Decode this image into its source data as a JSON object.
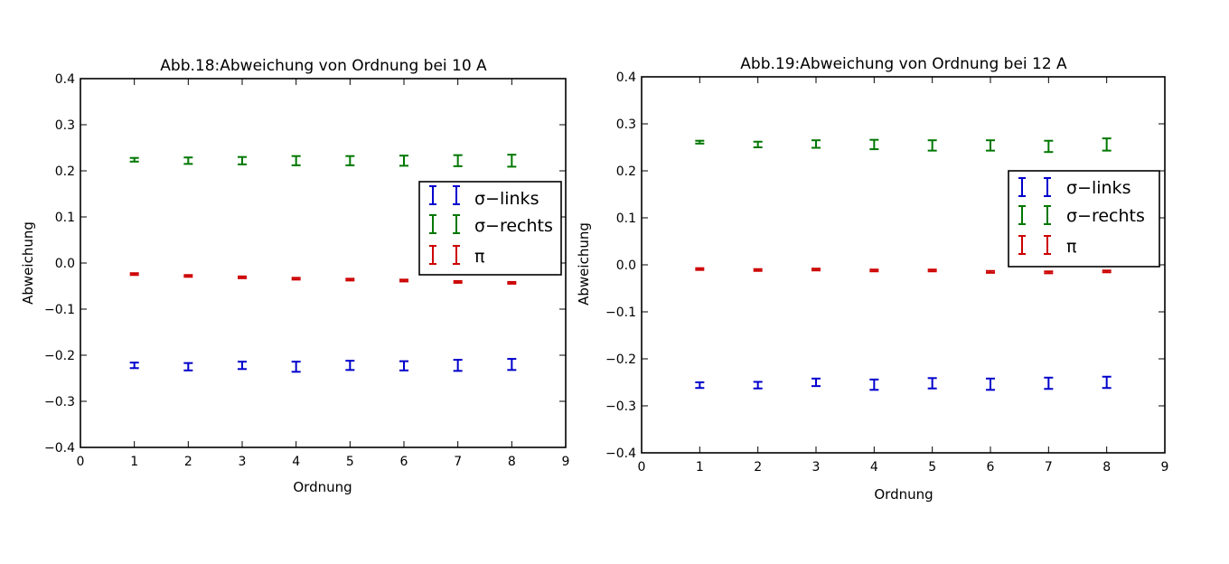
{
  "chart_data": [
    {
      "type": "scatter",
      "title": "Abb.18:Abweichung von Ordnung bei 10 A",
      "xlabel": "Ordnung",
      "ylabel": "Abweichung",
      "xlim": [
        0,
        9
      ],
      "ylim": [
        -0.4,
        0.4
      ],
      "xticks": [
        0,
        1,
        2,
        3,
        4,
        5,
        6,
        7,
        8,
        9
      ],
      "yticks": [
        -0.4,
        -0.3,
        -0.2,
        -0.1,
        0.0,
        0.1,
        0.2,
        0.3,
        0.4
      ],
      "grid": false,
      "legend_position": "right",
      "series": [
        {
          "name": "σ−links",
          "color": "#0000cc",
          "x": [
            1,
            2,
            3,
            4,
            5,
            6,
            7,
            8
          ],
          "y": [
            -0.222,
            -0.225,
            -0.222,
            -0.225,
            -0.222,
            -0.223,
            -0.222,
            -0.22
          ],
          "yerr": [
            0.006,
            0.008,
            0.008,
            0.011,
            0.01,
            0.01,
            0.012,
            0.012
          ]
        },
        {
          "name": "σ−rechts",
          "color": "#007700",
          "x": [
            1,
            2,
            3,
            4,
            5,
            6,
            7,
            8
          ],
          "y": [
            0.224,
            0.222,
            0.222,
            0.222,
            0.222,
            0.222,
            0.222,
            0.222
          ],
          "yerr": [
            0.004,
            0.007,
            0.008,
            0.01,
            0.01,
            0.011,
            0.012,
            0.013
          ]
        },
        {
          "name": "π",
          "color": "#cc0000",
          "x": [
            1,
            2,
            3,
            4,
            5,
            6,
            7,
            8
          ],
          "y": [
            -0.024,
            -0.028,
            -0.031,
            -0.034,
            -0.036,
            -0.038,
            -0.041,
            -0.043
          ],
          "yerr": [
            0.001,
            0.001,
            0.001,
            0.001,
            0.001,
            0.002,
            0.001,
            0.001
          ]
        }
      ]
    },
    {
      "type": "scatter",
      "title": "Abb.19:Abweichung von Ordnung bei 12 A",
      "xlabel": "Ordnung",
      "ylabel": "Abweichung",
      "xlim": [
        0,
        9
      ],
      "ylim": [
        -0.4,
        0.4
      ],
      "xticks": [
        0,
        1,
        2,
        3,
        4,
        5,
        6,
        7,
        8,
        9
      ],
      "yticks": [
        -0.4,
        -0.3,
        -0.2,
        -0.1,
        0.0,
        0.1,
        0.2,
        0.3,
        0.4
      ],
      "grid": false,
      "legend_position": "right",
      "series": [
        {
          "name": "σ−links",
          "color": "#0000cc",
          "x": [
            1,
            2,
            3,
            4,
            5,
            6,
            7,
            8
          ],
          "y": [
            -0.256,
            -0.256,
            -0.25,
            -0.255,
            -0.252,
            -0.254,
            -0.252,
            -0.25
          ],
          "yerr": [
            0.006,
            0.007,
            0.008,
            0.011,
            0.011,
            0.012,
            0.012,
            0.012
          ]
        },
        {
          "name": "σ−rechts",
          "color": "#007700",
          "x": [
            1,
            2,
            3,
            4,
            5,
            6,
            7,
            8
          ],
          "y": [
            0.261,
            0.256,
            0.257,
            0.256,
            0.254,
            0.254,
            0.252,
            0.256
          ],
          "yerr": [
            0.003,
            0.006,
            0.008,
            0.01,
            0.011,
            0.011,
            0.012,
            0.013
          ]
        },
        {
          "name": "π",
          "color": "#cc0000",
          "x": [
            1,
            2,
            3,
            4,
            5,
            6,
            7,
            8
          ],
          "y": [
            -0.009,
            -0.011,
            -0.01,
            -0.012,
            -0.012,
            -0.015,
            -0.016,
            -0.014
          ],
          "yerr": [
            0.001,
            0.001,
            0.001,
            0.001,
            0.001,
            0.002,
            0.002,
            0.001
          ]
        }
      ]
    }
  ]
}
